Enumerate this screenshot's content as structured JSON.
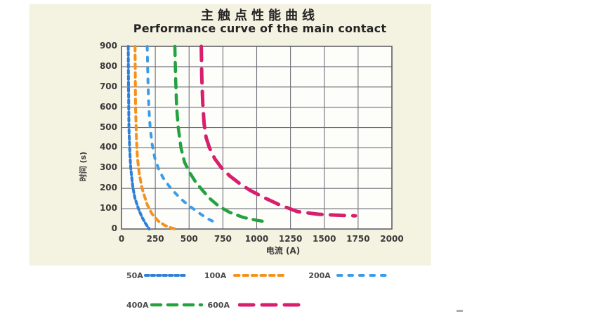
{
  "header": {
    "title": "主触点性能曲线",
    "subtitle": "Performance curve of the main contact"
  },
  "chart_data": {
    "type": "line",
    "title": "主触点性能曲线",
    "subtitle": "Performance curve of the main contact",
    "xlabel": "电流 (A)",
    "ylabel": "时间 (s)",
    "xlim": [
      0,
      2000
    ],
    "ylim": [
      0,
      900
    ],
    "x_ticks": [
      0,
      250,
      500,
      750,
      1000,
      1250,
      1500,
      1750,
      2000
    ],
    "y_ticks": [
      0,
      100,
      200,
      300,
      400,
      500,
      600,
      700,
      800,
      900
    ],
    "grid": true,
    "grid_color": "#6f6f78",
    "border_color": "#565660",
    "plot_background": "#fdfdfa",
    "panel_background": "#f4f2e0",
    "legend_position": "bottom",
    "series": [
      {
        "name": "50A",
        "color": "#2e7fd6",
        "dash": "4.5 4",
        "width": 4,
        "points": [
          [
            50,
            900
          ],
          [
            52,
            700
          ],
          [
            55,
            500
          ],
          [
            60,
            400
          ],
          [
            68,
            300
          ],
          [
            85,
            200
          ],
          [
            100,
            150
          ],
          [
            125,
            100
          ],
          [
            150,
            60
          ],
          [
            175,
            30
          ],
          [
            195,
            10
          ],
          [
            205,
            0
          ]
        ]
      },
      {
        "name": "100A",
        "color": "#f5911e",
        "dash": "6.5 6",
        "width": 4,
        "points": [
          [
            100,
            900
          ],
          [
            104,
            600
          ],
          [
            110,
            450
          ],
          [
            118,
            350
          ],
          [
            132,
            270
          ],
          [
            152,
            200
          ],
          [
            190,
            120
          ],
          [
            225,
            75
          ],
          [
            270,
            40
          ],
          [
            320,
            18
          ],
          [
            365,
            6
          ],
          [
            400,
            0
          ]
        ]
      },
      {
        "name": "200A",
        "color": "#3d9ce8",
        "dash": "5.5 10",
        "width": 4,
        "points": [
          [
            190,
            900
          ],
          [
            195,
            750
          ],
          [
            202,
            600
          ],
          [
            212,
            500
          ],
          [
            226,
            420
          ],
          [
            246,
            350
          ],
          [
            276,
            293
          ],
          [
            308,
            252
          ],
          [
            350,
            213
          ],
          [
            400,
            175
          ],
          [
            460,
            136
          ],
          [
            520,
            105
          ],
          [
            580,
            76
          ],
          [
            640,
            50
          ],
          [
            700,
            30
          ]
        ]
      },
      {
        "name": "400A",
        "color": "#23a23e",
        "dash": "13 10",
        "width": 4.5,
        "points": [
          [
            395,
            900
          ],
          [
            400,
            750
          ],
          [
            408,
            600
          ],
          [
            420,
            500
          ],
          [
            440,
            400
          ],
          [
            466,
            330
          ],
          [
            500,
            282
          ],
          [
            545,
            235
          ],
          [
            592,
            196
          ],
          [
            650,
            152
          ],
          [
            720,
            112
          ],
          [
            800,
            82
          ],
          [
            900,
            57
          ],
          [
            1000,
            43
          ],
          [
            1045,
            38
          ]
        ]
      },
      {
        "name": "600A",
        "color": "#d81f6e",
        "dash": "20 12",
        "width": 5,
        "points": [
          [
            590,
            900
          ],
          [
            594,
            750
          ],
          [
            601,
            620
          ],
          [
            611,
            520
          ],
          [
            626,
            450
          ],
          [
            652,
            398
          ],
          [
            690,
            346
          ],
          [
            740,
            301
          ],
          [
            800,
            262
          ],
          [
            870,
            226
          ],
          [
            950,
            191
          ],
          [
            1050,
            156
          ],
          [
            1160,
            122
          ],
          [
            1300,
            86
          ],
          [
            1450,
            73
          ],
          [
            1600,
            68
          ],
          [
            1730,
            65
          ]
        ]
      }
    ],
    "legend": [
      {
        "name": "50A",
        "row": 1,
        "label_gap": 1,
        "sample_width": 62,
        "gap_after": 24
      },
      {
        "name": "100A",
        "row": 1,
        "label_gap": 10,
        "sample_width": 74,
        "gap_after": 33
      },
      {
        "name": "200A",
        "row": 1,
        "label_gap": 8,
        "sample_width": 79,
        "gap_after": 0
      },
      {
        "name": "400A",
        "row": 2,
        "label_gap": 3,
        "sample_width": 75,
        "gap_after": 6
      },
      {
        "name": "600A",
        "row": 2,
        "label_gap": 12,
        "sample_width": 98,
        "gap_after": 0
      }
    ]
  }
}
